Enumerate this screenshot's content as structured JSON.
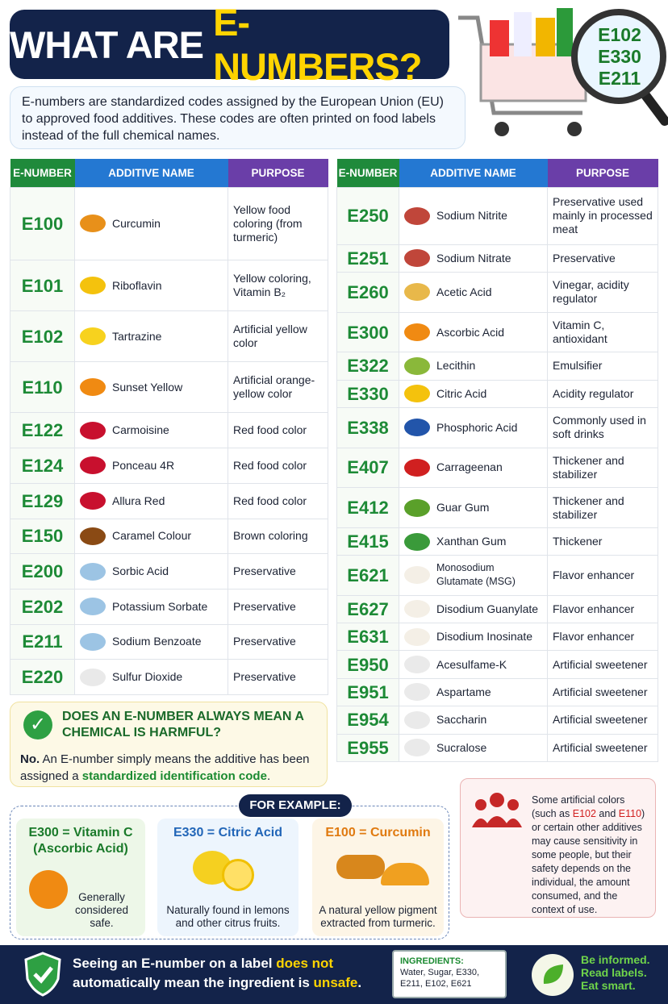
{
  "header": {
    "title": [
      "WHAT ARE ",
      "E-NUMBERS?"
    ],
    "intro": "E-numbers are standardized codes assigned by the European Union (EU) to approved food additives. These codes are often printed on food labels instead of the full chemical names.",
    "magnifier_codes": [
      "E102",
      "E330",
      "E211"
    ]
  },
  "table_headers": [
    "E-NUMBER",
    "ADDITIVE NAME",
    "PURPOSE"
  ],
  "left_table": {
    "rows": [
      [
        "E100",
        "Curcumin",
        "Yellow food coloring (from turmeric)"
      ],
      [
        "E101",
        "Riboflavin",
        "Yellow coloring, Vitamin B₂"
      ],
      [
        "E102",
        "Tartrazine",
        "Artificial yellow color"
      ],
      [
        "E110",
        "Sunset Yellow",
        "Artificial orange-yellow color"
      ],
      [
        "E122",
        "Carmoisine",
        "Red food color"
      ],
      [
        "E124",
        "Ponceau 4R",
        "Red food color"
      ],
      [
        "E129",
        "Allura Red",
        "Red food color"
      ],
      [
        "E150",
        "Caramel Colour",
        "Brown coloring"
      ],
      [
        "E200",
        "Sorbic Acid",
        "Preservative"
      ],
      [
        "E202",
        "Potassium Sorbate",
        "Preservative"
      ],
      [
        "E211",
        "Sodium Benzoate",
        "Preservative"
      ],
      [
        "E220",
        "Sulfur Dioxide",
        "Preservative"
      ]
    ]
  },
  "right_table": {
    "rows": [
      [
        "E250",
        "Sodium Nitrite",
        "Preservative used mainly in processed meat"
      ],
      [
        "E251",
        "Sodium Nitrate",
        "Preservative"
      ],
      [
        "E260",
        "Acetic Acid",
        "Vinegar, acidity regulator"
      ],
      [
        "E300",
        "Ascorbic Acid",
        "Vitamin C, antioxidant"
      ],
      [
        "E322",
        "Lecithin",
        "Emulsifier"
      ],
      [
        "E330",
        "Citric Acid",
        "Acidity regulator"
      ],
      [
        "E338",
        "Phosphoric Acid",
        "Commonly used in soft drinks"
      ],
      [
        "E407",
        "Carrageenan",
        "Thickener and stabilizer"
      ],
      [
        "E412",
        "Guar Gum",
        "Thickener and stabilizer"
      ],
      [
        "E415",
        "Xanthan Gum",
        "Thickener"
      ],
      [
        "E621",
        "Monosodium Glutamate (MSG)",
        "Flavor enhancer"
      ],
      [
        "E627",
        "Disodium Guanylate",
        "Flavor enhancer"
      ],
      [
        "E631",
        "Disodium Inosinate",
        "Flavor enhancer"
      ],
      [
        "E950",
        "Acesulfame-K",
        "Artificial sweetener"
      ],
      [
        "E951",
        "Aspartame",
        "Artificial sweetener"
      ],
      [
        "E954",
        "Saccharin",
        "Artificial sweetener"
      ],
      [
        "E955",
        "Sucralose",
        "Artificial sweetener"
      ]
    ]
  },
  "faq": {
    "question": "DOES AN E-NUMBER ALWAYS MEAN A CHEMICAL IS HARMFUL?",
    "answer": [
      "No.",
      "An E-number simply means the additive has been assigned a",
      "standardized identification code",
      "."
    ]
  },
  "examples": {
    "title": "FOR EXAMPLE:",
    "cards": [
      {
        "heading": "E300 = Vitamin C (Ascorbic Acid)",
        "text": "Generally considered safe."
      },
      {
        "heading": "E330 = Citric Acid",
        "text": "Naturally found in lemons and other citrus fruits."
      },
      {
        "heading": "E100 = Curcumin",
        "text": "A natural yellow pigment extracted from turmeric."
      }
    ]
  },
  "warning": [
    "Some artificial colors (such as",
    "E102",
    "and",
    "E110",
    ") or certain other additives may cause sensitivity in some people, but their safety depends on the individual, the amount consumed, and the context of use."
  ],
  "footer": {
    "message": [
      "Seeing an E-number on a label",
      "does not",
      "automatically mean the ingredient is",
      "unsafe",
      "."
    ],
    "ingredients_title": "INGREDIENTS:",
    "ingredients": "Water, Sugar, E330, E211, E102, E621",
    "slogan": [
      "Be informed.",
      "Read labels.",
      "Eat smart."
    ]
  }
}
